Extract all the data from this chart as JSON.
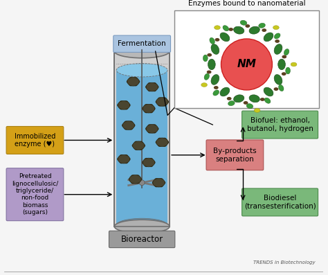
{
  "title": "Enzymes bound to nanomaterial",
  "bg_color": "#f5f5f5",
  "bioreactor_label": "Bioreactor",
  "fermentation_label": "Fermentation",
  "byproducts_label": "By-products\nseparation",
  "biofuel_label": "Biofuel: ethanol,\nbutanol, hydrogen",
  "biodiesel_label": "Biodiesel\n(transesterification)",
  "immobilized_label": "Immobilized\nenzyme (♥)",
  "pretreated_label": "Pretreated\nlignocellulosic/\ntriglyceride/\nnon-food\nbiomass\n(sugars)",
  "trends_label": "TRENDS in Biotechnology",
  "box_fermentation_color": "#aac4e0",
  "box_byproducts_color": "#d98080",
  "box_biofuel_color": "#7ab87a",
  "box_biodiesel_color": "#7ab87a",
  "box_immobilized_color": "#d4a017",
  "box_pretreated_color": "#b09ac8",
  "box_bioreactor_color": "#9a9a9a",
  "nm_circle_color": "#e85050",
  "bioreactor_liquid_color": "#6ab0d8",
  "cylinder_gray": "#c8c8c8",
  "cylinder_dark": "#707070"
}
